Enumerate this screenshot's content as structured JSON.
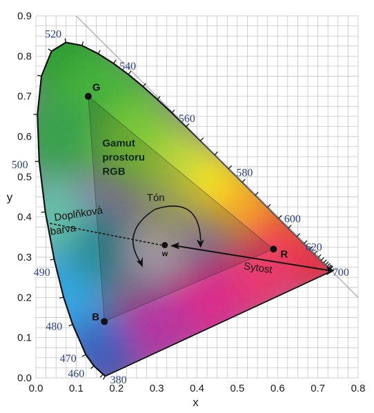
{
  "chart_data": {
    "type": "diagram",
    "xlabel": "x",
    "ylabel": "y",
    "xlim": [
      0,
      0.8
    ],
    "ylim": [
      0,
      0.9
    ],
    "x_ticks": [
      "0.0",
      "0.1",
      "0.2",
      "0.3",
      "0.4",
      "0.5",
      "0.6",
      "0.7",
      "0.8"
    ],
    "y_ticks": [
      "0.0",
      "0.1",
      "0.2",
      "0.3",
      "0.4",
      "0.5",
      "0.6",
      "0.7",
      "0.8",
      "0.9"
    ],
    "grid": true,
    "spectral_locus": [
      [
        0.1741,
        0.005
      ],
      [
        0.172,
        0.0048
      ],
      [
        0.1666,
        0.0089
      ],
      [
        0.144,
        0.0297
      ],
      [
        0.1241,
        0.0578
      ],
      [
        0.0913,
        0.1327
      ],
      [
        0.0687,
        0.2007
      ],
      [
        0.0454,
        0.295
      ],
      [
        0.0235,
        0.4127
      ],
      [
        0.0082,
        0.5384
      ],
      [
        0.0039,
        0.6548
      ],
      [
        0.0139,
        0.7502
      ],
      [
        0.0389,
        0.812
      ],
      [
        0.0743,
        0.8338
      ],
      [
        0.1142,
        0.8262
      ],
      [
        0.1547,
        0.8059
      ],
      [
        0.1929,
        0.7816
      ],
      [
        0.2296,
        0.7543
      ],
      [
        0.2658,
        0.7243
      ],
      [
        0.3016,
        0.6923
      ],
      [
        0.3373,
        0.6589
      ],
      [
        0.3731,
        0.6245
      ],
      [
        0.4087,
        0.5896
      ],
      [
        0.4441,
        0.5547
      ],
      [
        0.4788,
        0.5202
      ],
      [
        0.5125,
        0.4866
      ],
      [
        0.5448,
        0.4544
      ],
      [
        0.5752,
        0.4242
      ],
      [
        0.6029,
        0.3965
      ],
      [
        0.627,
        0.3725
      ],
      [
        0.6482,
        0.3514
      ],
      [
        0.6658,
        0.334
      ],
      [
        0.6801,
        0.3197
      ],
      [
        0.6915,
        0.3083
      ],
      [
        0.7006,
        0.2993
      ],
      [
        0.7079,
        0.292
      ],
      [
        0.714,
        0.2859
      ],
      [
        0.719,
        0.2809
      ],
      [
        0.723,
        0.277
      ],
      [
        0.726,
        0.274
      ],
      [
        0.7283,
        0.2717
      ],
      [
        0.73,
        0.27
      ],
      [
        0.7347,
        0.2653
      ]
    ],
    "wavelength_labels": [
      {
        "nm": "380",
        "x": 0.1741,
        "y": 0.005,
        "tx": 0.205,
        "ty": -0.005
      },
      {
        "nm": "460",
        "x": 0.144,
        "y": 0.0297,
        "tx": 0.1,
        "ty": 0.01
      },
      {
        "nm": "470",
        "x": 0.1241,
        "y": 0.0578,
        "tx": 0.08,
        "ty": 0.048
      },
      {
        "nm": "480",
        "x": 0.0913,
        "y": 0.1327,
        "tx": 0.045,
        "ty": 0.128
      },
      {
        "nm": "490",
        "x": 0.0454,
        "y": 0.295,
        "tx": 0.015,
        "ty": 0.262
      },
      {
        "nm": "500",
        "x": 0.0082,
        "y": 0.5384,
        "tx": -0.04,
        "ty": 0.53
      },
      {
        "nm": "520",
        "x": 0.0743,
        "y": 0.8338,
        "tx": 0.043,
        "ty": 0.855
      },
      {
        "nm": "540",
        "x": 0.2296,
        "y": 0.7543,
        "tx": 0.228,
        "ty": 0.775
      },
      {
        "nm": "560",
        "x": 0.3731,
        "y": 0.6245,
        "tx": 0.375,
        "ty": 0.645
      },
      {
        "nm": "580",
        "x": 0.5125,
        "y": 0.4866,
        "tx": 0.518,
        "ty": 0.51
      },
      {
        "nm": "600",
        "x": 0.627,
        "y": 0.3725,
        "tx": 0.637,
        "ty": 0.395
      },
      {
        "nm": "620",
        "x": 0.6915,
        "y": 0.3083,
        "tx": 0.69,
        "ty": 0.325
      },
      {
        "nm": "700",
        "x": 0.7347,
        "y": 0.2653,
        "tx": 0.757,
        "ty": 0.262
      }
    ],
    "purple_line": {
      "from": [
        0.1741,
        0.005
      ],
      "to": [
        0.7347,
        0.2653
      ]
    },
    "gray_line": {
      "from": [
        0.1,
        0.9
      ],
      "to": [
        0.8,
        0.2
      ]
    },
    "primaries": [
      {
        "label": "R",
        "x": 0.59,
        "y": 0.32
      },
      {
        "label": "G",
        "x": 0.13,
        "y": 0.7
      },
      {
        "label": "B",
        "x": 0.17,
        "y": 0.14
      }
    ],
    "white_point": {
      "label": "w",
      "x": 0.32,
      "y": 0.33
    },
    "gamut_label": [
      "Gamut",
      "prostoru",
      "RGB"
    ],
    "hue_label": "Tón",
    "saturation_label": "Sytost",
    "complementary_label": [
      "Doplňková",
      "barva"
    ],
    "complementary_line": {
      "from": [
        0.035,
        0.384
      ],
      "to": [
        0.32,
        0.33
      ]
    },
    "saturation_arrow": {
      "from": [
        0.7347,
        0.2653
      ],
      "to": [
        0.32,
        0.33
      ]
    }
  }
}
